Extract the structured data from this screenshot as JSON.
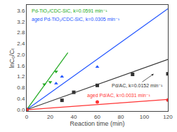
{
  "chart_data": {
    "type": "scatter",
    "xlabel": "Reaction time (min)",
    "ylabel": "lnC₀/Cₜ",
    "xlim": [
      0,
      120
    ],
    "ylim": [
      -0.05,
      3.8
    ],
    "xticks": [
      0,
      20,
      40,
      60,
      80,
      100,
      120
    ],
    "yticks": [
      {
        "value": 0,
        "label": "0.0"
      },
      0.4,
      0.8,
      1.2,
      1.6,
      {
        "value": 2,
        "label": "2.0"
      },
      2.4,
      2.8,
      3.2,
      3.6
    ],
    "grid": false,
    "series": [
      {
        "type": "line",
        "color": "#22aa22",
        "x": [
          0,
          35
        ],
        "values": [
          0,
          2.0685
        ]
      },
      {
        "type": "scatter",
        "color": "#22aa22",
        "marker": "triangle-down",
        "x": [
          0,
          15,
          20,
          25
        ],
        "values": [
          0.0,
          0.92,
          1.0,
          1.38
        ]
      },
      {
        "type": "line",
        "color": "#2255ff",
        "x": [
          0,
          120
        ],
        "values": [
          0,
          3.66
        ]
      },
      {
        "type": "scatter",
        "color": "#2255ff",
        "marker": "triangle-up",
        "x": [
          0,
          25,
          30,
          60
        ],
        "values": [
          0.0,
          0.95,
          1.2,
          1.55
        ]
      },
      {
        "type": "line",
        "color": "#333333",
        "x": [
          0,
          120
        ],
        "values": [
          0,
          1.824
        ]
      },
      {
        "type": "scatter",
        "color": "#333333",
        "marker": "square",
        "x": [
          0,
          30,
          40,
          60,
          90,
          120
        ],
        "values": [
          0.0,
          0.34,
          0.63,
          0.88,
          1.28,
          1.3
        ]
      },
      {
        "type": "line",
        "color": "#ff3333",
        "x": [
          0,
          120
        ],
        "values": [
          0,
          0.372
        ]
      },
      {
        "type": "scatter",
        "color": "#ff3333",
        "marker": "circle",
        "x": [
          0,
          60,
          120
        ],
        "values": [
          0.0,
          0.28,
          0.35
        ]
      }
    ],
    "annotations": [
      {
        "text": "Pd-TiO₂/CDC-SiC, k=0.0591 min⁻¹",
        "color": "#22aa22"
      },
      {
        "text": "aged Pd-TiO₂/CDC-SiC, k=0.0305 min⁻¹",
        "color": "#2255ff"
      },
      {
        "text": "Pd/AC, k=0.0152 min⁻¹",
        "color": "#333333"
      },
      {
        "text": "aged Pd/AC, k=0.0031 min⁻¹",
        "color": "#ff3333"
      }
    ]
  }
}
